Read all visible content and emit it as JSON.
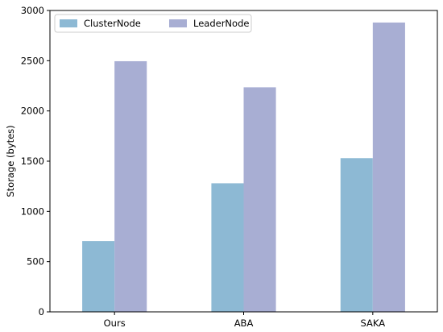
{
  "chart_data": {
    "type": "bar",
    "categories": [
      "Ours",
      "ABA",
      "SAKA"
    ],
    "series": [
      {
        "name": "ClusterNode",
        "values": [
          705,
          1280,
          1530
        ],
        "color": "#8db9d4"
      },
      {
        "name": "LeaderNode",
        "values": [
          2495,
          2235,
          2880
        ],
        "color": "#a8aed3"
      }
    ],
    "title": "",
    "xlabel": "",
    "ylabel": "Storage (bytes)",
    "ylim": [
      0,
      3000
    ],
    "yticks": [
      0,
      500,
      1000,
      1500,
      2000,
      2500,
      3000
    ],
    "grid": false,
    "legend_position": "top-left"
  }
}
